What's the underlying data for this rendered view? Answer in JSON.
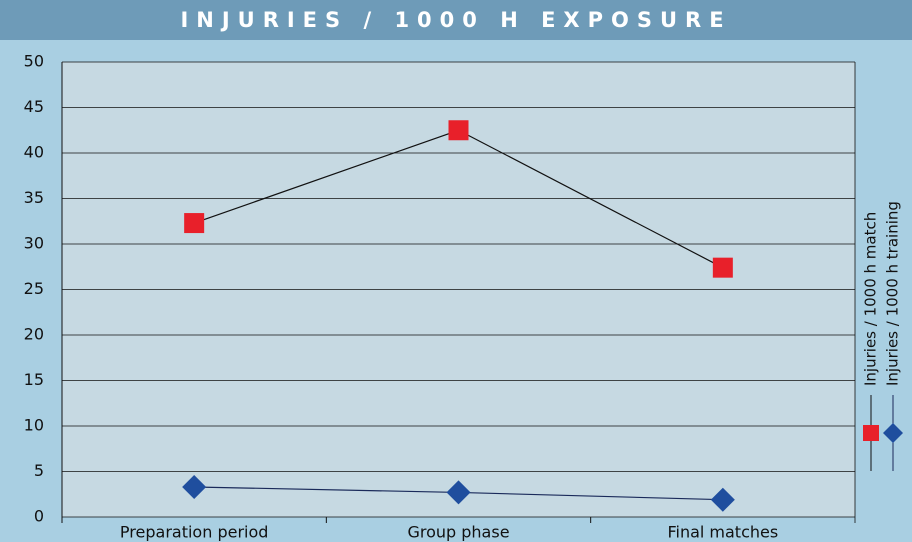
{
  "chart_data": {
    "type": "line",
    "title": "INJURIES / 1000 H EXPOSURE",
    "categories": [
      "Preparation period",
      "Group phase",
      "Final matches"
    ],
    "series": [
      {
        "name": "Injuries / 1000 h match",
        "color": "#e8202a",
        "line_color": "#111111",
        "marker": "square",
        "values": [
          32.3,
          42.5,
          27.4
        ]
      },
      {
        "name": "Injuries / 1000 h training",
        "color": "#1f4e9e",
        "line_color": "#1a2a5a",
        "marker": "diamond",
        "values": [
          3.3,
          2.7,
          1.9
        ]
      }
    ],
    "ylim": [
      0,
      50
    ],
    "yticks": [
      0,
      5,
      10,
      15,
      20,
      25,
      30,
      35,
      40,
      45,
      50
    ],
    "grid": true,
    "legend": "right"
  }
}
